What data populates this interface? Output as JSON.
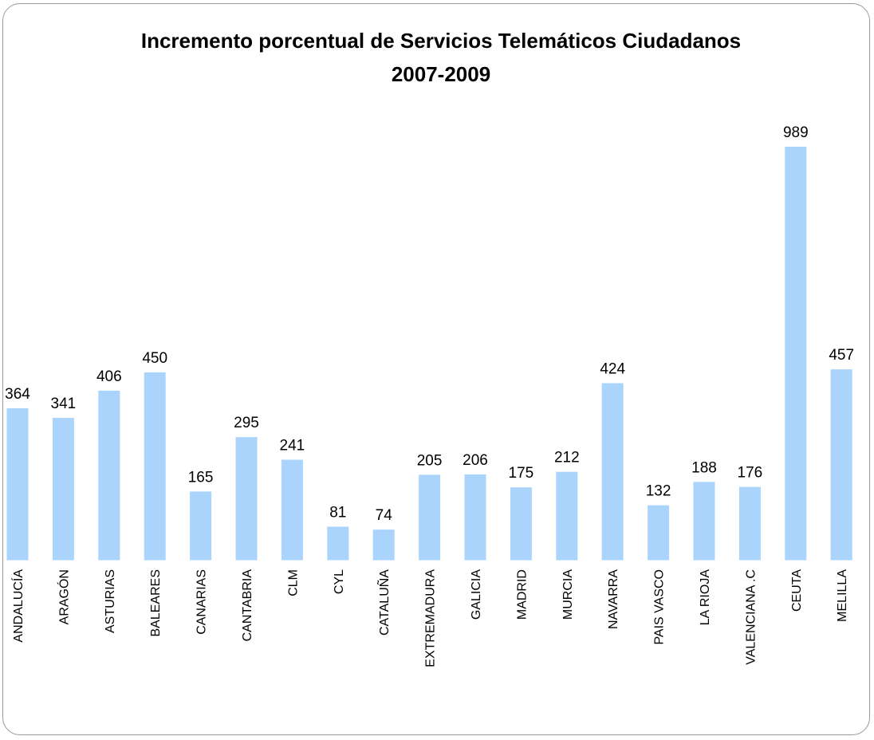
{
  "chart_data": {
    "type": "bar",
    "title": "Incremento porcentual de Servicios Telemáticos Ciudadanos",
    "subtitle": "2007-2009",
    "categories": [
      "ANDALUCÍA",
      "ARAGÓN",
      "ASTURIAS",
      "BALEARES",
      "CANARIAS",
      "CANTABRIA",
      "CLM",
      "CYL",
      "CATALUÑA",
      "EXTREMADURA",
      "GALICIA",
      "MADRID",
      "MURCIA",
      "NAVARRA",
      "PAIS VASCO",
      "LA RIOJA",
      "VALENCIANA .C",
      "CEUTA",
      "MELILLA"
    ],
    "values": [
      364,
      341,
      406,
      450,
      165,
      295,
      241,
      81,
      74,
      205,
      206,
      175,
      212,
      424,
      132,
      188,
      176,
      989,
      457
    ],
    "ylim": [
      0,
      1000
    ],
    "grid": false,
    "legend": "none",
    "bar_color": "#aad4fc",
    "xlabel": "",
    "ylabel": ""
  }
}
